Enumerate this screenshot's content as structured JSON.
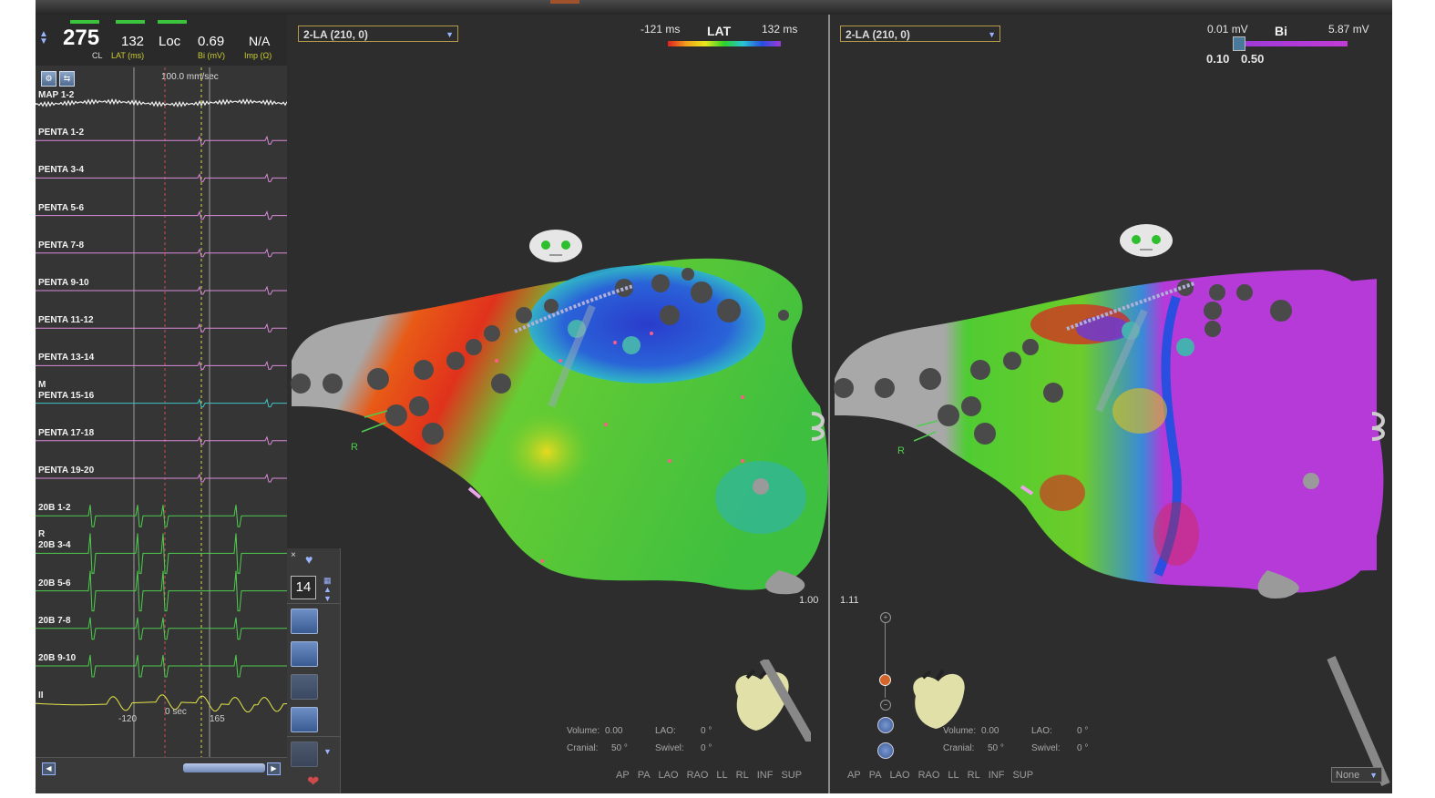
{
  "egm": {
    "readout": {
      "cl_value": "275",
      "cl_label": "CL",
      "lat_value": "132",
      "lat_label": "LAT (ms)",
      "loc_value": "Loc",
      "bi_value": "0.69",
      "bi_label": "Bi (mV)",
      "imp_value": "N/A",
      "imp_label": "Imp (Ω)"
    },
    "speed": "100.0 mm/sec",
    "channels": [
      {
        "label": "MAP 1-2",
        "color": "#f2f2f2"
      },
      {
        "label": "PENTA 1-2",
        "color": "#d98ad9"
      },
      {
        "label": "PENTA 3-4",
        "color": "#d98ad9"
      },
      {
        "label": "PENTA 5-6",
        "color": "#d98ad9"
      },
      {
        "label": "PENTA 7-8",
        "color": "#d98ad9"
      },
      {
        "label": "PENTA 9-10",
        "color": "#d98ad9"
      },
      {
        "label": "PENTA 11-12",
        "color": "#d98ad9"
      },
      {
        "label": "PENTA 13-14",
        "color": "#d98ad9"
      },
      {
        "label": "PENTA 15-16",
        "color": "#3fc6c6"
      },
      {
        "label": "PENTA 17-18",
        "color": "#d98ad9"
      },
      {
        "label": "PENTA 19-20",
        "color": "#d98ad9"
      },
      {
        "label": "20B 1-2",
        "color": "#4fcc4f"
      },
      {
        "label": "20B 3-4",
        "color": "#4fcc4f"
      },
      {
        "label": "20B 5-6",
        "color": "#4fcc4f"
      },
      {
        "label": "20B 7-8",
        "color": "#4fcc4f"
      },
      {
        "label": "20B 9-10",
        "color": "#4fcc4f"
      },
      {
        "label": "II",
        "color": "#e6e64a"
      }
    ],
    "marker_m": "M",
    "marker_r": "R",
    "time_left": "-120",
    "time_zero": "0 sec",
    "time_right": "165"
  },
  "map_lat": {
    "dropdown": "2-LA (210, 0)",
    "scale_min": "-121 ms",
    "scale_title": "LAT",
    "scale_max": "132 ms",
    "zoom": "1.00",
    "volume_label": "Volume:",
    "volume_value": "0.00",
    "lao_label": "LAO:",
    "lao_value": "0 °",
    "cranial_label": "Cranial:",
    "cranial_value": "50 °",
    "swivel_label": "Swivel:",
    "swivel_value": "0 °",
    "count": "14",
    "r_label": "R"
  },
  "map_bi": {
    "dropdown": "2-LA (210, 0)",
    "scale_min": "0.01 mV",
    "scale_title": "Bi",
    "scale_max": "5.87 mV",
    "threshold_low": "0.10",
    "threshold_high": "0.50",
    "zoom": "1.11",
    "volume_label": "Volume:",
    "volume_value": "0.00",
    "lao_label": "LAO:",
    "lao_value": "0 °",
    "cranial_label": "Cranial:",
    "cranial_value": "50 °",
    "swivel_label": "Swivel:",
    "swivel_value": "0 °",
    "none_dropdown": "None",
    "r_label": "R"
  },
  "views": [
    "AP",
    "PA",
    "LAO",
    "RAO",
    "LL",
    "RL",
    "INF",
    "SUP"
  ],
  "colors": {
    "lat_bar": [
      "#e02020",
      "#f2a21b",
      "#e8e81e",
      "#2bd12b",
      "#29c4d6",
      "#2a4ee0",
      "#9b3ad6"
    ],
    "bi_bar": [
      "#9b3ad6",
      "#c23bd8"
    ],
    "penta": "#d98ad9",
    "green": "#4fcc4f",
    "ecg": "#e6e64a"
  }
}
